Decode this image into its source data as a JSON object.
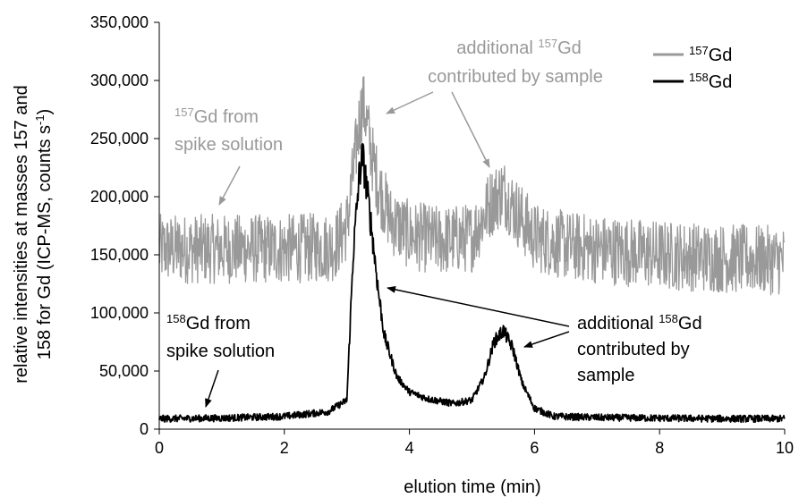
{
  "chart_data": {
    "type": "line",
    "xlabel": "elution time (min)",
    "ylabel": {
      "line1": "relative intensities at masses 157 and",
      "line2_pre": "158 for Gd  (ICP-MS, counts s",
      "line2_sup": "-1",
      "line2_post": ")"
    },
    "xlim": [
      0,
      10
    ],
    "ylim": [
      0,
      350000
    ],
    "x_ticks": [
      0,
      2,
      4,
      6,
      8,
      10
    ],
    "x_tick_labels": [
      "0",
      "2",
      "4",
      "6",
      "8",
      "10"
    ],
    "y_ticks": [
      0,
      50000,
      100000,
      150000,
      200000,
      250000,
      300000,
      350000
    ],
    "y_tick_labels": [
      "0",
      "50,000",
      "100,000",
      "150,000",
      "200,000",
      "250,000",
      "300,000",
      "350,000"
    ],
    "grid": false,
    "legend_position": "top-right",
    "series": [
      {
        "name_sup": "157",
        "name_base": "Gd",
        "color": "#999999",
        "noise_amplitude": 30000,
        "x": [
          0,
          1,
          2,
          2.8,
          3.0,
          3.1,
          3.2,
          3.25,
          3.3,
          3.4,
          3.5,
          3.7,
          4.0,
          4.5,
          5.0,
          5.3,
          5.5,
          5.7,
          6.0,
          6.5,
          7,
          8,
          9,
          10
        ],
        "y": [
          155000,
          155000,
          155000,
          157000,
          175000,
          220000,
          265000,
          280000,
          270000,
          235000,
          210000,
          180000,
          167000,
          162000,
          165000,
          195000,
          205000,
          188000,
          165000,
          158000,
          155000,
          150000,
          147000,
          145000
        ]
      },
      {
        "name_sup": "158",
        "name_base": "Gd",
        "color": "#000000",
        "noise_amplitude": 3000,
        "x": [
          0,
          1,
          2,
          2.7,
          3.0,
          3.1,
          3.2,
          3.25,
          3.3,
          3.4,
          3.5,
          3.6,
          3.8,
          4.0,
          4.3,
          4.7,
          5.0,
          5.2,
          5.35,
          5.5,
          5.65,
          5.8,
          6.0,
          6.3,
          7,
          8,
          9,
          10
        ],
        "y": [
          9000,
          9500,
          11000,
          15000,
          25000,
          150000,
          220000,
          235000,
          215000,
          170000,
          120000,
          80000,
          45000,
          32000,
          26000,
          22000,
          25000,
          45000,
          75000,
          85000,
          70000,
          40000,
          18000,
          11000,
          10000,
          9500,
          9000,
          9000
        ]
      }
    ],
    "annotations": [
      {
        "id": "spike157",
        "color": "#999999",
        "lines": [
          {
            "sup": "157",
            "text": "Gd from"
          },
          {
            "sup": "",
            "text": "spike solution"
          }
        ]
      },
      {
        "id": "add157",
        "color": "#999999",
        "lines": [
          {
            "pre": "additional ",
            "sup": "157",
            "text": "Gd"
          },
          {
            "pre": "",
            "sup": "",
            "text": "contributed by sample"
          }
        ]
      },
      {
        "id": "spike158",
        "color": "#000000",
        "lines": [
          {
            "sup": "158",
            "text": "Gd from"
          },
          {
            "sup": "",
            "text": "spike solution"
          }
        ]
      },
      {
        "id": "add158",
        "color": "#000000",
        "lines": [
          {
            "pre": "additional ",
            "sup": "158",
            "text": "Gd"
          },
          {
            "pre": "",
            "sup": "",
            "text": "contributed by"
          },
          {
            "pre": "",
            "sup": "",
            "text": "sample"
          }
        ]
      }
    ]
  }
}
